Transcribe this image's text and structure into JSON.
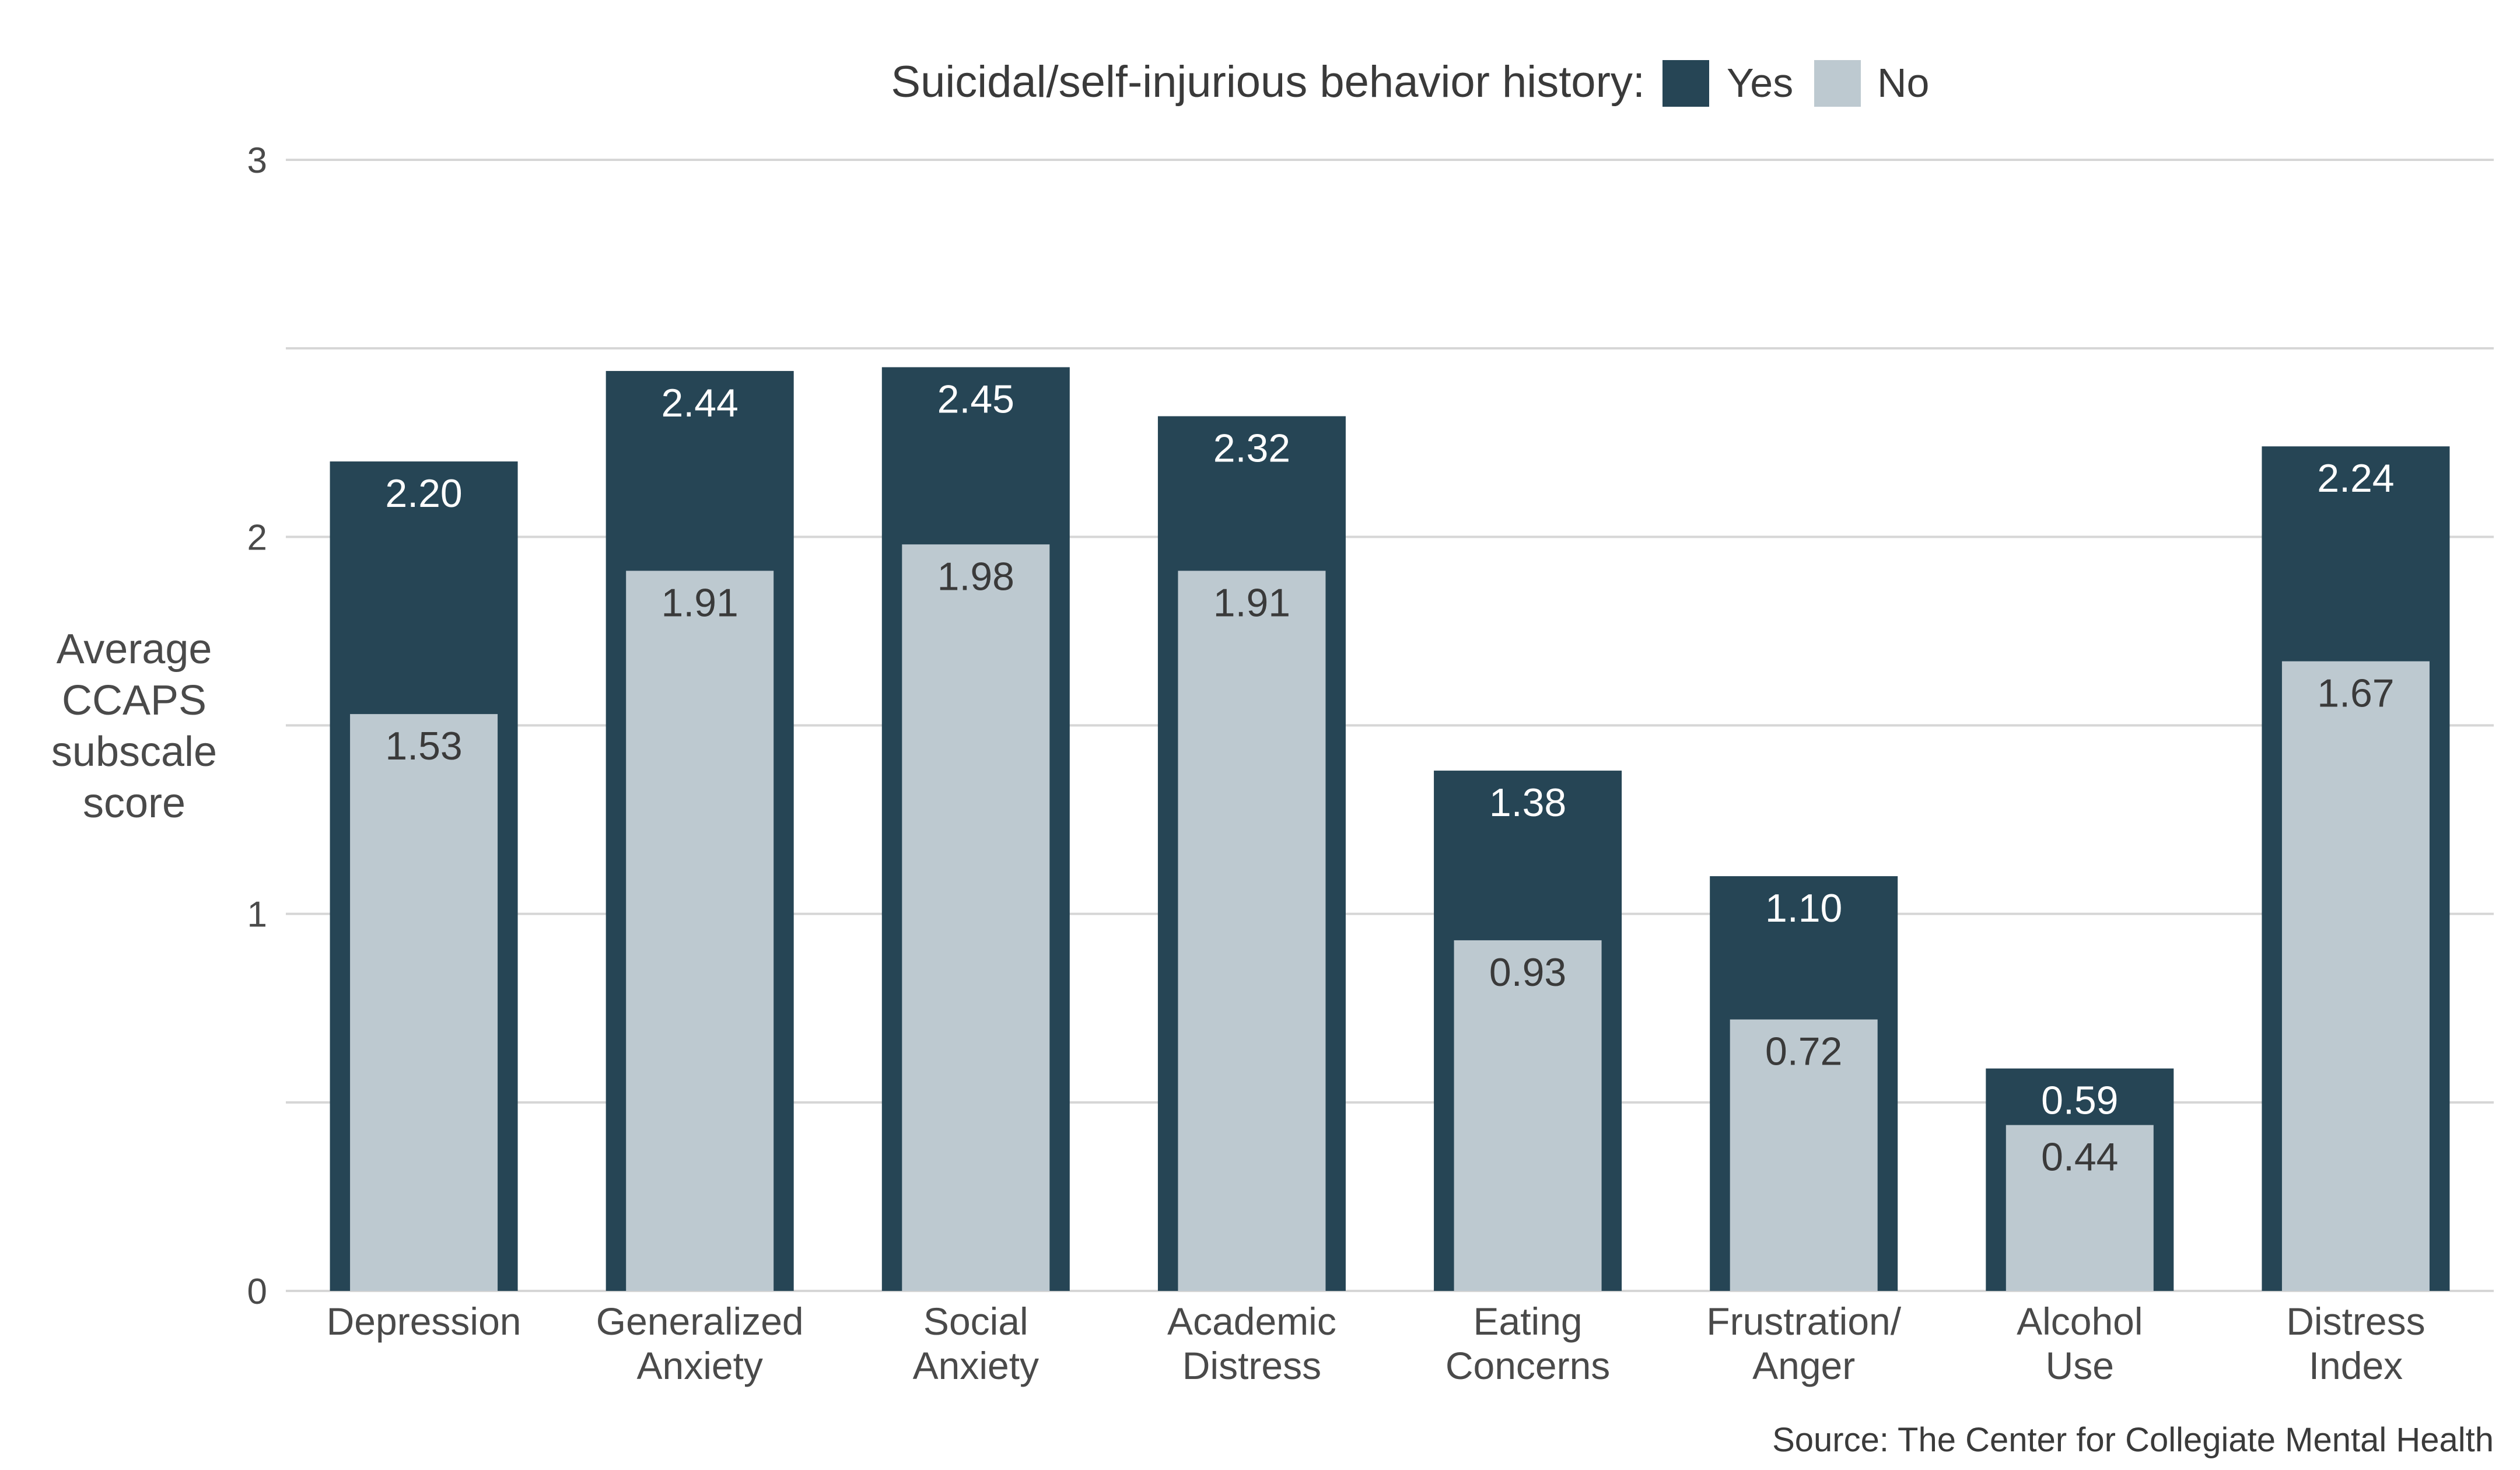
{
  "chart_data": {
    "type": "bar",
    "legend_title": "Suicidal/self-injurious behavior history:",
    "legend_position": "top",
    "ylabel_lines": [
      "Average",
      "CCAPS",
      "subscale",
      "score"
    ],
    "xlabel": "",
    "ylim": [
      0,
      3
    ],
    "yticks": [
      0,
      1,
      2,
      3
    ],
    "minor_gridlines": [
      0.5,
      1.5,
      2.5
    ],
    "grid": true,
    "categories": [
      [
        "Depression"
      ],
      [
        "Generalized",
        "Anxiety"
      ],
      [
        "Social",
        "Anxiety"
      ],
      [
        "Academic",
        "Distress"
      ],
      [
        "Eating",
        "Concerns"
      ],
      [
        "Frustration/",
        "Anger"
      ],
      [
        "Alcohol",
        "Use"
      ],
      [
        "Distress",
        "Index"
      ]
    ],
    "series": [
      {
        "name": "Yes",
        "color": "#264555",
        "label_color": "#ffffff",
        "values": [
          2.2,
          2.44,
          2.45,
          2.32,
          1.38,
          1.1,
          0.59,
          2.24
        ],
        "labels": [
          "2.20",
          "2.44",
          "2.45",
          "2.32",
          "1.38",
          "1.10",
          "0.59",
          "2.24"
        ]
      },
      {
        "name": "No",
        "color": "#bdc9d0",
        "label_color": "#3a3a3a",
        "values": [
          1.53,
          1.91,
          1.98,
          1.91,
          0.93,
          0.72,
          0.44,
          1.67
        ],
        "labels": [
          "1.53",
          "1.91",
          "1.98",
          "1.91",
          "0.93",
          "0.72",
          "0.44",
          "1.67"
        ]
      }
    ],
    "source": "Source: The Center for Collegiate Mental Health"
  }
}
